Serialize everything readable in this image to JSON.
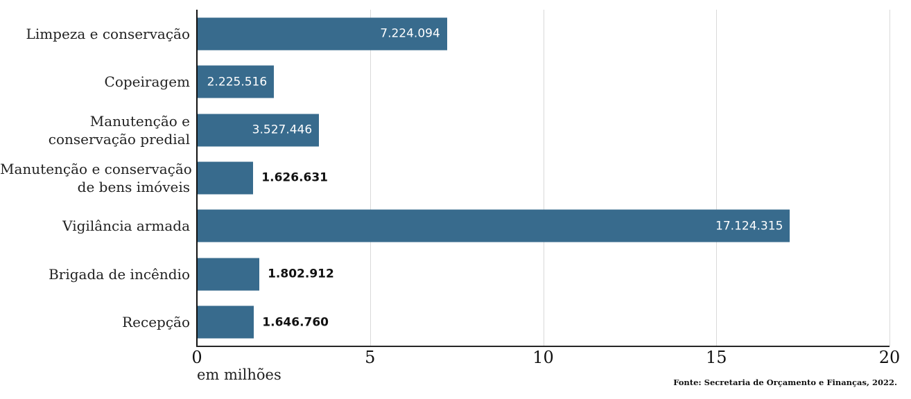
{
  "chart_data": {
    "type": "bar",
    "orientation": "horizontal",
    "title": "",
    "xlabel": "em milhões",
    "ylabel": "",
    "xlim": [
      0,
      20
    ],
    "x_ticks": [
      "0",
      "5",
      "10",
      "15",
      "20"
    ],
    "x_tick_values": [
      0,
      5,
      10,
      15,
      20
    ],
    "grid": "vertical",
    "legend": "none",
    "categories": [
      "Limpeza e conservação",
      "Copeiragem",
      "Manutenção e conservação predial",
      "Manutenção e conservação de bens imóveis",
      "Vigilância armada",
      "Brigada de incêndio",
      "Recepção"
    ],
    "category_label_lines": [
      [
        "Limpeza e conservação"
      ],
      [
        "Copeiragem"
      ],
      [
        "Manutenção e",
        "conservação predial"
      ],
      [
        "Manutenção e conservação",
        "de bens imóveis"
      ],
      [
        "Vigilância armada"
      ],
      [
        "Brigada de incêndio"
      ],
      [
        "Recepção"
      ]
    ],
    "values": [
      7224094,
      2225516,
      3527446,
      1626631,
      17124315,
      1802912,
      1646760
    ],
    "value_labels": [
      "7.224.094",
      "2.225.516",
      "3.527.446",
      "1.626.631",
      "17.124.315",
      "1.802.912",
      "1.646.760"
    ],
    "value_scale": 1000000,
    "colors": {
      "bar": "#386b8d",
      "gridline": "#d9d9d9",
      "y_axis_line": "#111111",
      "x_axis_line": "#262626",
      "label_inside": "#ffffff",
      "label_outside": "#111111"
    }
  },
  "footer": {
    "source": "Fonte: Secretaria de Orçamento e Finanças, 2022."
  }
}
